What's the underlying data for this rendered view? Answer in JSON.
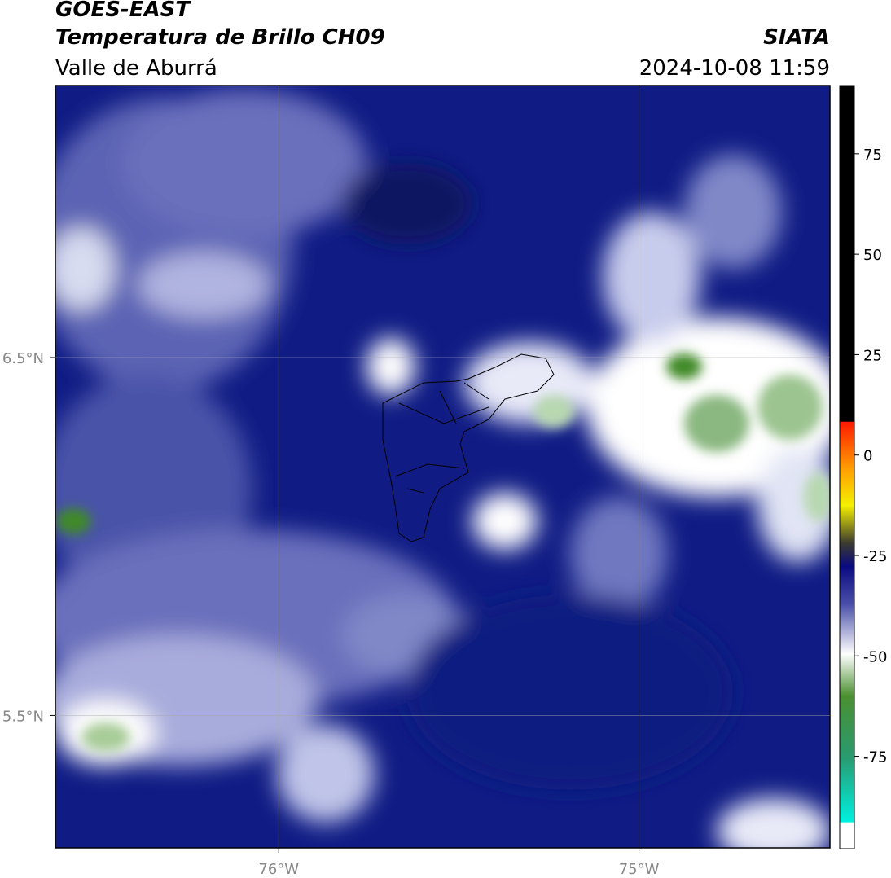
{
  "header": {
    "title": "GOES-EAST",
    "subtitle": "Temperatura de Brillo CH09",
    "region": "Valle de Aburrá",
    "source": "SIATA",
    "datetime": "2024-10-08 11:59"
  },
  "map": {
    "lon_range": [
      -76.62,
      -74.47
    ],
    "lat_range": [
      7.26,
      5.13
    ],
    "lon_ticks": [
      {
        "value": -76,
        "label": "76°W"
      },
      {
        "value": -75,
        "label": "75°W"
      }
    ],
    "lat_ticks": [
      {
        "value": 6.5,
        "label": "6.5°N"
      },
      {
        "value": 5.5,
        "label": "5.5°N"
      }
    ]
  },
  "colorbar": {
    "range": [
      92,
      -98
    ],
    "ticks": [
      75,
      50,
      25,
      0,
      -25,
      -50,
      -75
    ]
  }
}
